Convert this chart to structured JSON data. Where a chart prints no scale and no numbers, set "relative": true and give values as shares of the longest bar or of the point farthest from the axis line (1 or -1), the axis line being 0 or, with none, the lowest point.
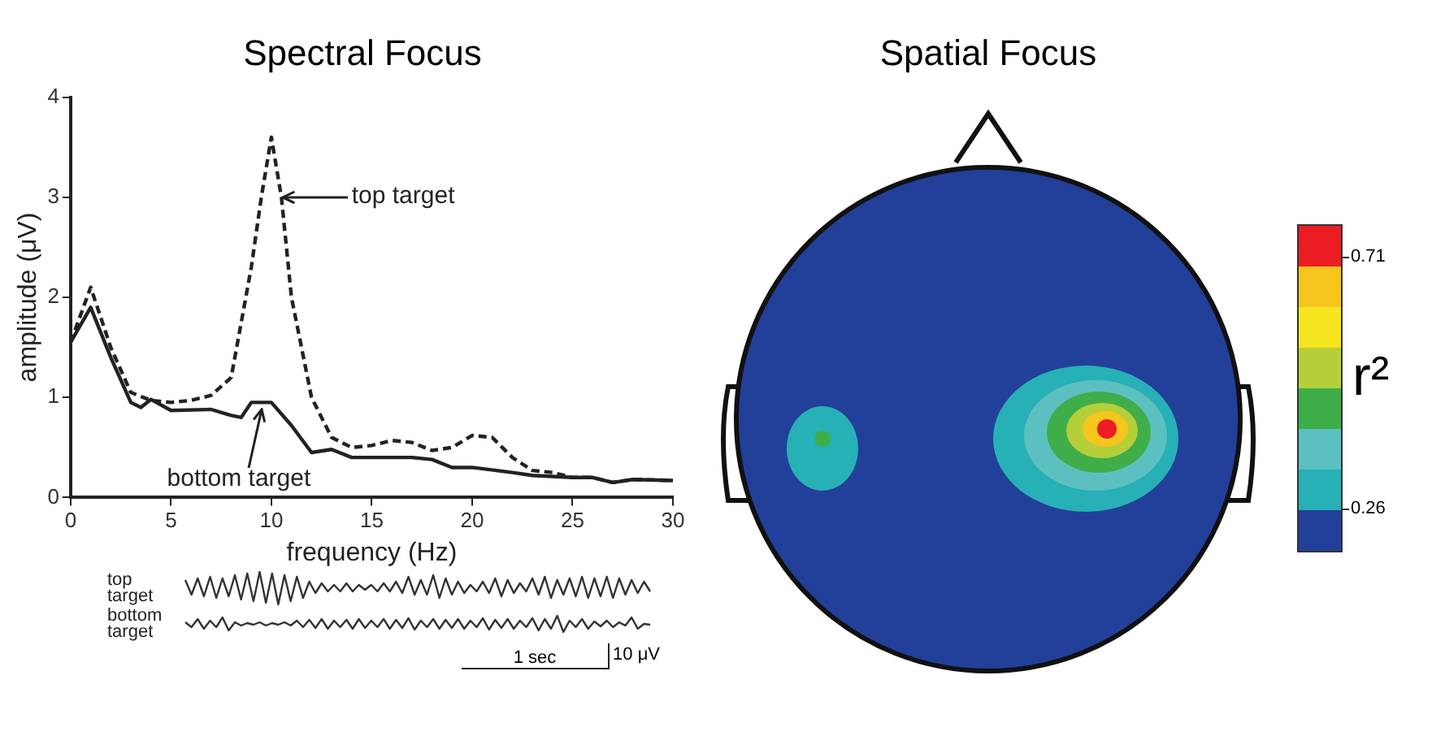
{
  "chart_data": [
    {
      "type": "line",
      "title": "Spectral Focus",
      "xlabel": "frequency (Hz)",
      "ylabel": "amplitude (μV)",
      "xlim": [
        0,
        30
      ],
      "ylim": [
        0,
        4
      ],
      "xticks": [
        0,
        5,
        10,
        15,
        20,
        25,
        30
      ],
      "yticks": [
        0,
        1,
        2,
        3,
        4
      ],
      "grid": false,
      "legend": false,
      "marker": "none",
      "series": [
        {
          "color": "#222222",
          "line_style": "dashed",
          "x": [
            0,
            1,
            2,
            3,
            4,
            5,
            6,
            7,
            8,
            9,
            9.5,
            10,
            10.5,
            11,
            12,
            13,
            14,
            15,
            16,
            17,
            18,
            19,
            20,
            21,
            22,
            23,
            24,
            25,
            26,
            27,
            28,
            30
          ],
          "values": [
            1.55,
            2.1,
            1.5,
            1.05,
            0.97,
            0.95,
            0.97,
            1.02,
            1.2,
            2.3,
            3.0,
            3.6,
            3.0,
            2.0,
            1.0,
            0.6,
            0.5,
            0.52,
            0.57,
            0.55,
            0.47,
            0.5,
            0.62,
            0.6,
            0.4,
            0.27,
            0.25,
            0.2,
            0.2,
            0.15,
            0.18,
            0.17
          ]
        },
        {
          "color": "#222222",
          "line_style": "solid",
          "x": [
            0,
            1,
            2,
            3,
            3.5,
            4,
            5,
            7,
            8,
            8.5,
            9,
            10,
            11,
            12,
            13,
            14,
            17,
            18,
            19,
            20,
            22,
            23,
            25,
            26,
            27,
            28,
            30
          ],
          "values": [
            1.55,
            1.9,
            1.4,
            0.95,
            0.9,
            0.98,
            0.87,
            0.88,
            0.82,
            0.8,
            0.95,
            0.95,
            0.72,
            0.45,
            0.48,
            0.4,
            0.4,
            0.38,
            0.3,
            0.3,
            0.25,
            0.22,
            0.2,
            0.2,
            0.15,
            0.18,
            0.17
          ]
        }
      ],
      "annotations": [
        {
          "text": "top target",
          "x": 10.6,
          "y": 3.0
        },
        {
          "text": "bottom target",
          "x": 9.5,
          "y": 0.88
        }
      ]
    },
    {
      "type": "line",
      "relative": true,
      "legend": false,
      "marker": "none",
      "categories": [
        null,
        null,
        null,
        null,
        null,
        null,
        null,
        null,
        null,
        null,
        null,
        null,
        null,
        null,
        null,
        null,
        null,
        null,
        null,
        null,
        null,
        null,
        null,
        null,
        null,
        null,
        null,
        null,
        null,
        null,
        null,
        null,
        null,
        null,
        null,
        null,
        null,
        null,
        null,
        null,
        null,
        null,
        null,
        null,
        null,
        null,
        null,
        null,
        null,
        null,
        null,
        null,
        null,
        null,
        null,
        null,
        null,
        null,
        null,
        null,
        null,
        null,
        null,
        null,
        null,
        null,
        null,
        null,
        null,
        null,
        null,
        null,
        null,
        null,
        null,
        null
      ],
      "series": [
        {
          "name": "top target",
          "color": "#333333",
          "values": [
            0.75,
            0.3,
            0.8,
            0.25,
            0.85,
            0.2,
            0.8,
            0.25,
            0.9,
            0.15,
            0.95,
            0.1,
            1,
            0.05,
            0.95,
            0,
            0.9,
            0.1,
            0.85,
            0.2,
            0.7,
            0.35,
            0.65,
            0.4,
            0.6,
            0.4,
            0.65,
            0.4,
            0.6,
            0.45,
            0.6,
            0.4,
            0.65,
            0.4,
            0.7,
            0.35,
            0.85,
            0.3,
            0.75,
            0.3,
            0.9,
            0.2,
            0.8,
            0.3,
            0.7,
            0.35,
            0.6,
            0.4,
            0.7,
            0.35,
            0.8,
            0.25,
            0.75,
            0.35,
            0.65,
            0.4,
            0.8,
            0.3,
            0.85,
            0.2,
            0.75,
            0.3,
            0.8,
            0.25,
            0.85,
            0.2,
            0.8,
            0.25,
            0.85,
            0.2,
            0.8,
            0.3,
            0.75,
            0.35,
            0.7,
            0.4
          ]
        }
      ]
    },
    {
      "type": "line",
      "relative": true,
      "legend": false,
      "marker": "none",
      "categories": [
        null,
        null,
        null,
        null,
        null,
        null,
        null,
        null,
        null,
        null,
        null,
        null,
        null,
        null,
        null,
        null,
        null,
        null,
        null,
        null,
        null,
        null,
        null,
        null,
        null,
        null,
        null,
        null,
        null,
        null,
        null,
        null,
        null,
        null,
        null,
        null,
        null,
        null,
        null,
        null,
        null,
        null,
        null,
        null,
        null,
        null,
        null,
        null,
        null,
        null,
        null,
        null,
        null,
        null,
        null,
        null,
        null,
        null,
        null,
        null,
        null,
        null,
        null,
        null,
        null,
        null,
        null,
        null,
        null,
        null,
        null,
        null,
        null,
        null,
        null,
        null
      ],
      "series": [
        {
          "name": "bottom target",
          "color": "#333333",
          "values": [
            0.6,
            0.3,
            0.8,
            0.2,
            0.7,
            0.3,
            0.9,
            0.1,
            0.6,
            0.4,
            0.55,
            0.45,
            0.6,
            0.4,
            0.55,
            0.45,
            0.6,
            0.4,
            0.7,
            0.3,
            0.75,
            0.25,
            0.8,
            0.2,
            0.7,
            0.3,
            0.75,
            0.2,
            0.8,
            0.25,
            0.7,
            0.3,
            0.8,
            0.2,
            0.75,
            0.25,
            0.85,
            0.15,
            0.7,
            0.3,
            0.8,
            0.2,
            0.75,
            0.25,
            0.8,
            0.2,
            0.7,
            0.3,
            0.85,
            0.15,
            0.75,
            0.25,
            0.8,
            0.2,
            0.7,
            0.3,
            0.85,
            0.1,
            0.8,
            0.2,
            1,
            0,
            0.7,
            0.3,
            0.8,
            0.2,
            0.65,
            0.35,
            0.7,
            0.3,
            0.6,
            0.4,
            0.9,
            0.2,
            0.5,
            0.45
          ]
        }
      ],
      "annotations": [
        "1 sec",
        "10 μV"
      ]
    },
    {
      "type": "other",
      "title": "Spatial Focus",
      "clabel": "r²",
      "annotations": [
        "0.71",
        "0.26"
      ],
      "colors": [
        "#22409a",
        "#27b0b5",
        "#5cc0c0",
        "#3fae49",
        "#b5cf3a",
        "#f6e51e",
        "#f6c51e",
        "#ec1c24"
      ]
    }
  ]
}
